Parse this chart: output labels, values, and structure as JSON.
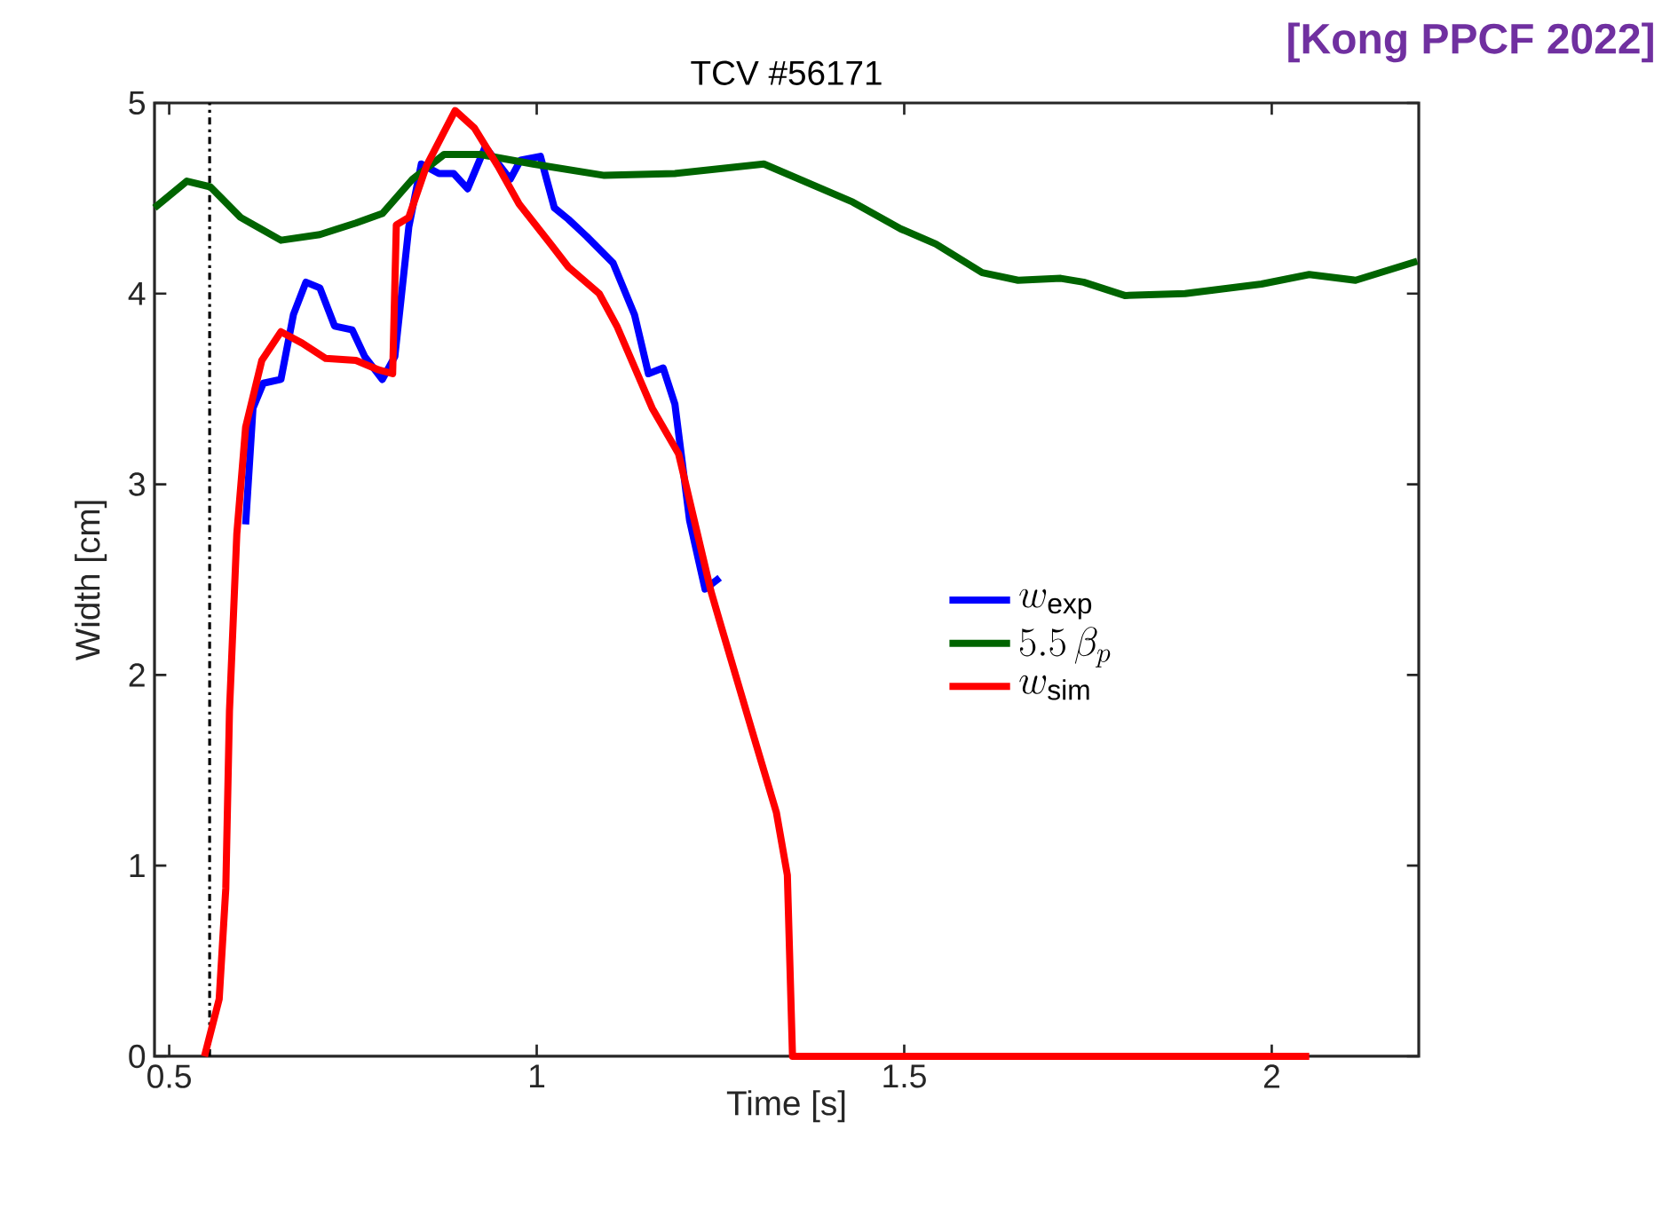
{
  "chart_data": {
    "type": "line",
    "title": "TCV #56171",
    "xlabel": "Time [s]",
    "ylabel": "Width [cm]",
    "annotations": [
      "[Kong PPCF 2022]"
    ],
    "xlim": [
      0.48,
      2.2
    ],
    "ylim": [
      0,
      5
    ],
    "xticks": [
      0.5,
      1,
      1.5,
      2
    ],
    "yticks": [
      0,
      1,
      2,
      3,
      4,
      5
    ],
    "grid": false,
    "legend": "right",
    "line_style": "solid",
    "marker": "none",
    "ref_lines": [
      {
        "axis": "x",
        "value": 0.555,
        "color": "#000000",
        "line_style": "dashdot"
      }
    ],
    "series": [
      {
        "name": "w_{\\mathrm{exp}}",
        "color": "#0000ff",
        "x": [
          0.604,
          0.614,
          0.628,
          0.652,
          0.669,
          0.686,
          0.705,
          0.725,
          0.749,
          0.766,
          0.79,
          0.807,
          0.826,
          0.843,
          0.867,
          0.887,
          0.906,
          0.93,
          0.964,
          0.978,
          1.005,
          1.024,
          1.043,
          1.068,
          1.104,
          1.133,
          1.152,
          1.172,
          1.188,
          1.208,
          1.229,
          1.249
        ],
        "values": [
          2.79,
          3.4,
          3.53,
          3.55,
          3.89,
          4.06,
          4.03,
          3.83,
          3.81,
          3.67,
          3.55,
          3.67,
          4.35,
          4.68,
          4.63,
          4.63,
          4.55,
          4.77,
          4.6,
          4.7,
          4.72,
          4.45,
          4.39,
          4.3,
          4.16,
          3.89,
          3.58,
          3.61,
          3.42,
          2.81,
          2.45,
          2.51
        ]
      },
      {
        "name": "5.5\\,\\beta_p",
        "color": "#006400",
        "x": [
          0.48,
          0.524,
          0.556,
          0.597,
          0.652,
          0.705,
          0.754,
          0.79,
          0.831,
          0.874,
          0.923,
          0.995,
          1.092,
          1.188,
          1.261,
          1.309,
          1.43,
          1.495,
          1.543,
          1.606,
          1.655,
          1.713,
          1.744,
          1.8,
          1.882,
          1.986,
          2.051,
          2.114,
          2.198
        ],
        "values": [
          4.45,
          4.59,
          4.56,
          4.4,
          4.28,
          4.31,
          4.37,
          4.42,
          4.6,
          4.73,
          4.73,
          4.68,
          4.62,
          4.63,
          4.66,
          4.68,
          4.48,
          4.34,
          4.26,
          4.11,
          4.07,
          4.08,
          4.06,
          3.99,
          4.0,
          4.05,
          4.1,
          4.07,
          4.17
        ]
      },
      {
        "name": "w_{\\mathrm{sim}}",
        "color": "#ff0000",
        "x": [
          0.548,
          0.568,
          0.577,
          0.582,
          0.592,
          0.604,
          0.626,
          0.652,
          0.681,
          0.713,
          0.754,
          0.785,
          0.804,
          0.809,
          0.826,
          0.85,
          0.889,
          0.915,
          0.947,
          0.976,
          1.019,
          1.043,
          1.085,
          1.109,
          1.157,
          1.193,
          1.237,
          1.249,
          1.292,
          1.326,
          1.341,
          1.348,
          2.051
        ],
        "values": [
          0,
          0.3,
          0.88,
          1.81,
          2.74,
          3.3,
          3.65,
          3.8,
          3.74,
          3.66,
          3.65,
          3.6,
          3.58,
          4.36,
          4.4,
          4.67,
          4.96,
          4.87,
          4.67,
          4.47,
          4.26,
          4.14,
          4.0,
          3.83,
          3.4,
          3.16,
          2.44,
          2.28,
          1.72,
          1.28,
          0.95,
          0,
          0
        ]
      }
    ]
  }
}
